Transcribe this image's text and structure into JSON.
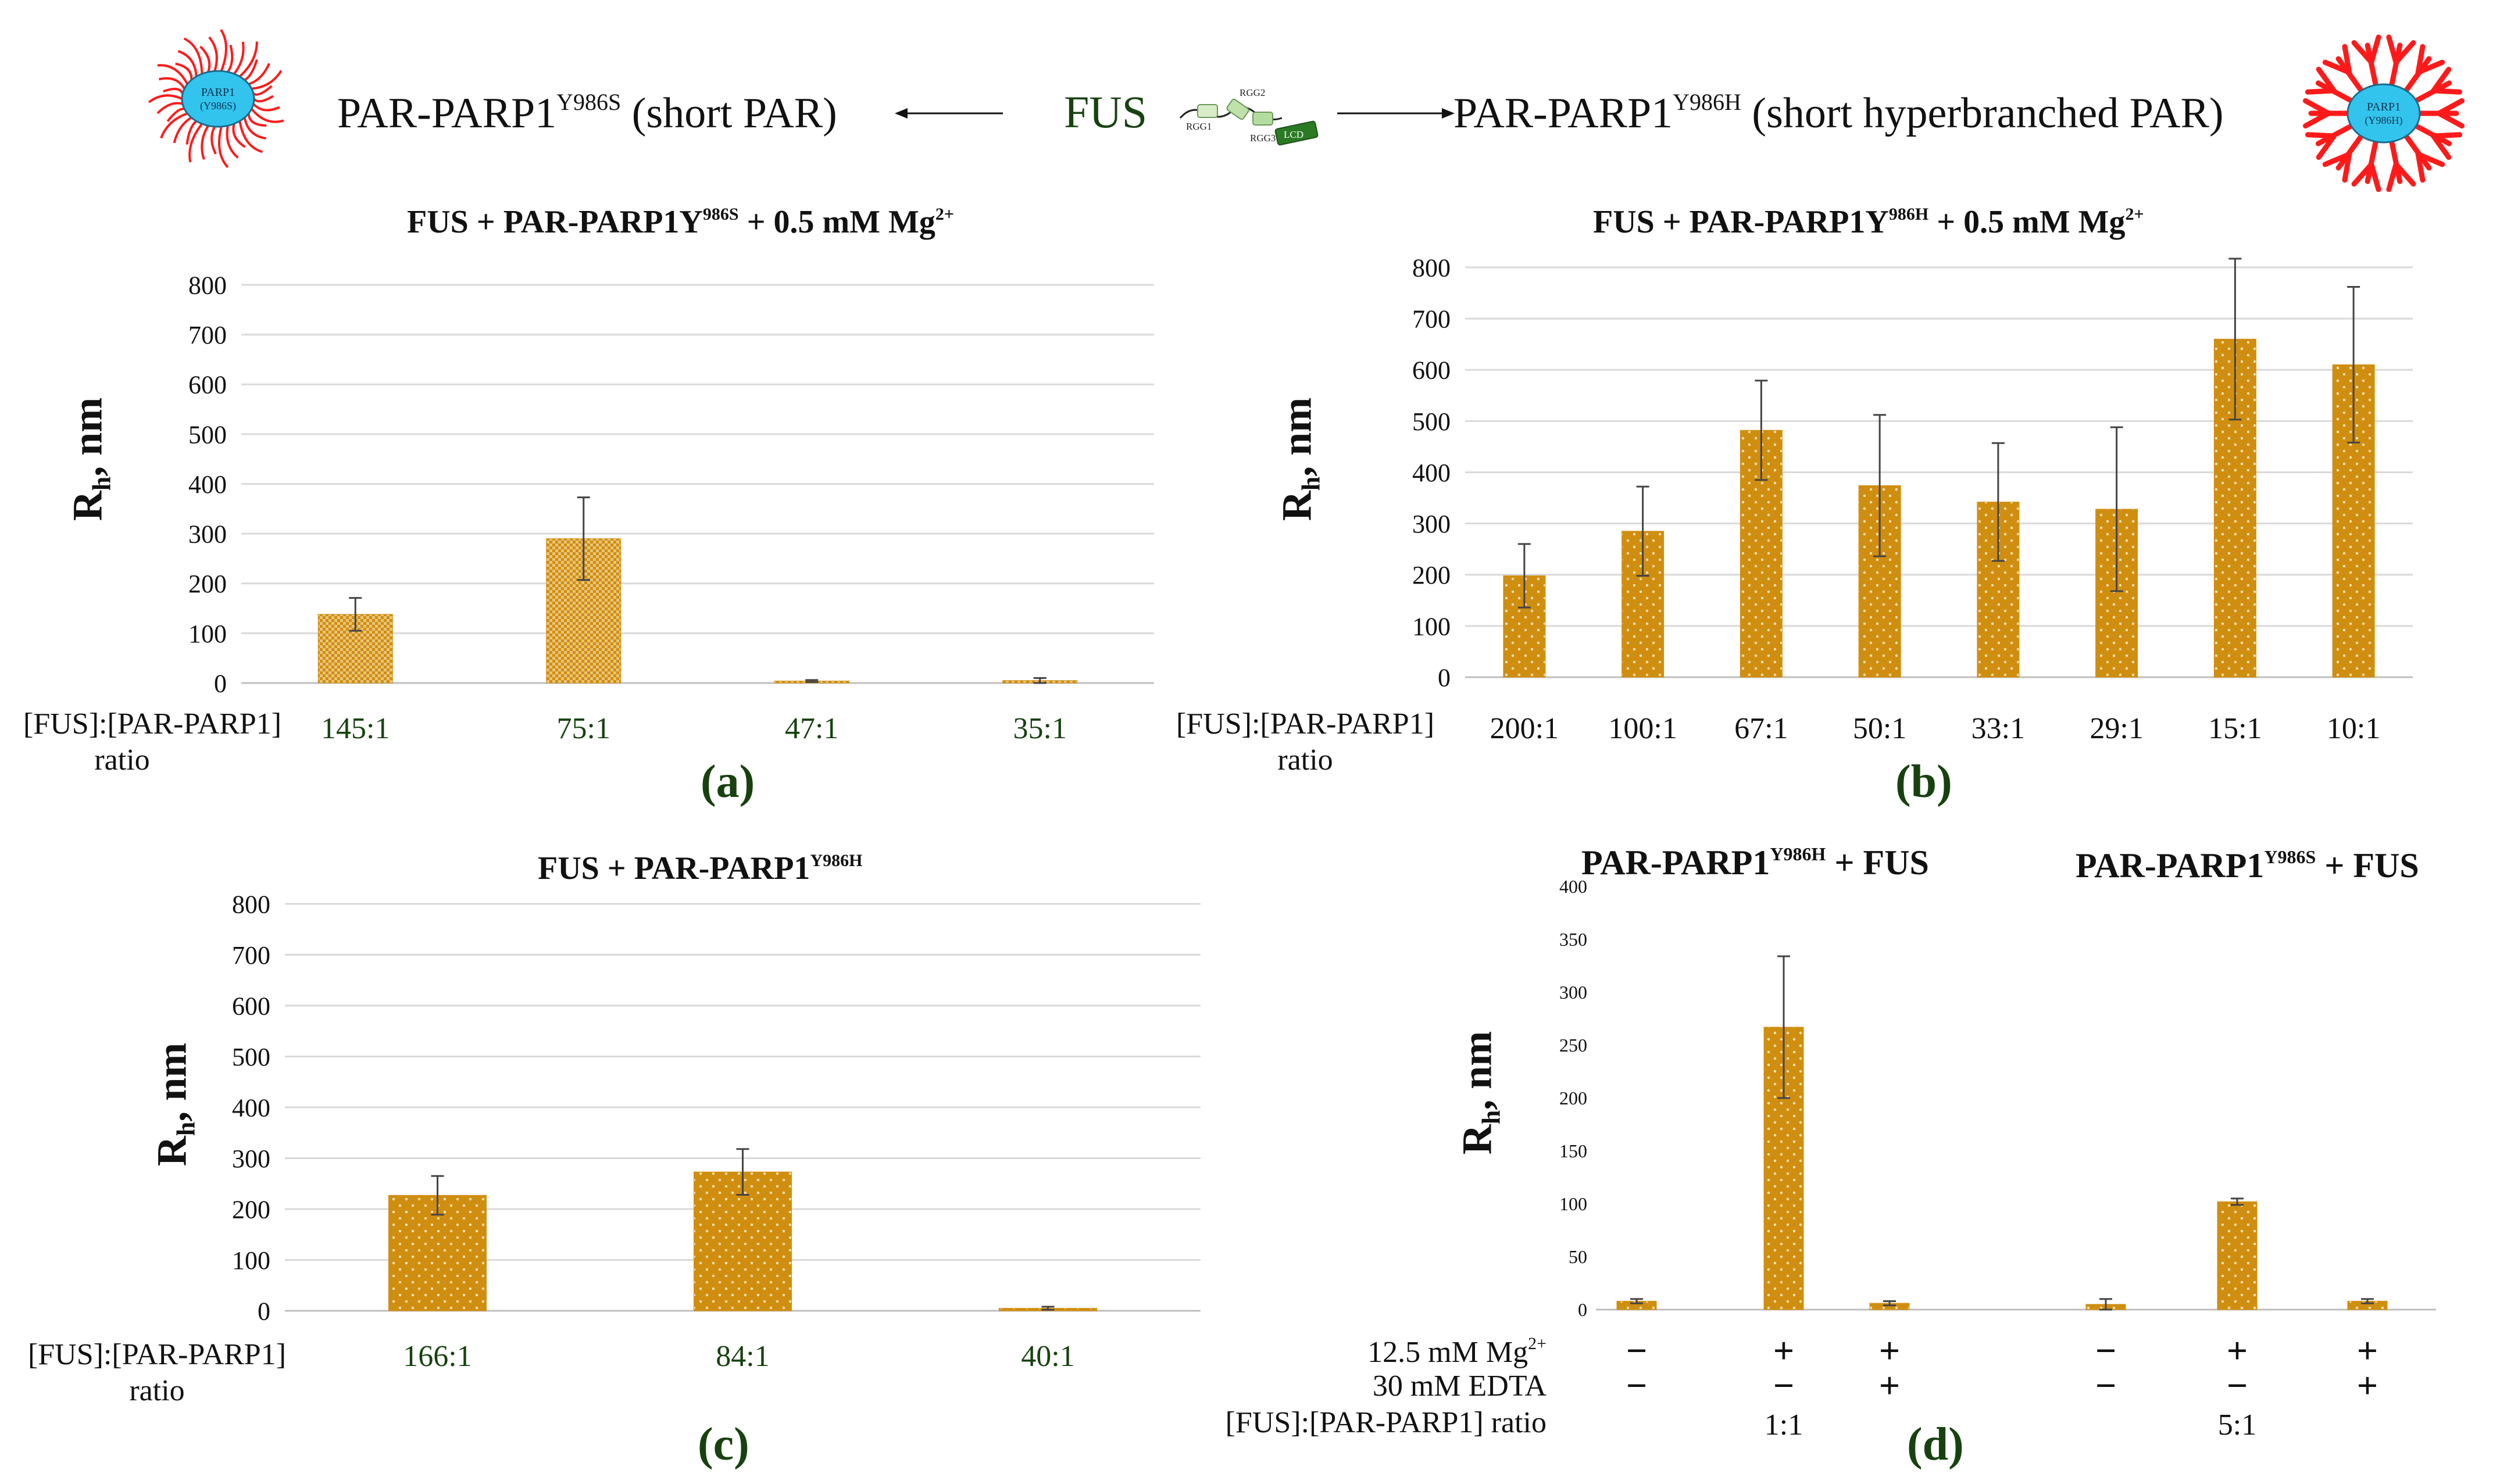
{
  "header": {
    "left_label": "PAR-PARP1",
    "left_sup": "Y986S",
    "left_desc": "(short PAR)",
    "center_label": "FUS",
    "right_label": "PAR-PARP1",
    "right_sup": "Y986H",
    "right_desc": "(short hyperbranched PAR)",
    "left_bubble_line1": "PARP1",
    "left_bubble_line2": "(Y986S)",
    "right_bubble_line1": "PARP1",
    "right_bubble_line2": "(Y986H)",
    "domain_rgg1": "RGG1",
    "domain_rgg2": "RGG2",
    "domain_rgg3": "RGG3",
    "domain_lcd": "LCD"
  },
  "colors": {
    "bar": "#d08e10",
    "grid": "#d9d9d9",
    "error": "#444444",
    "label_green": "#17420f",
    "par_red": "#ff1a1a",
    "bubble_blue": "#33c4ee"
  },
  "x_row_label_line1": "[FUS]:[PAR-PARP1]",
  "x_row_label_line2": "ratio",
  "chart_data": [
    {
      "type": "bar",
      "panel": "(a)",
      "title": "FUS  + PAR-PARP1Y",
      "title_sup": "986S",
      "title_suffix": " + 0.5 mM Mg",
      "title_ion": "2+",
      "ylabel": "R",
      "ylabel_sub": "h",
      "ylabel_unit": ", nm",
      "ylim": [
        0,
        800
      ],
      "yticks": [
        "0",
        "100",
        "200",
        "300",
        "400",
        "500",
        "600",
        "700",
        "800"
      ],
      "categories": [
        "145:1",
        "75:1",
        "47:1",
        "35:1"
      ],
      "values": [
        138,
        290,
        4,
        5
      ],
      "errors": [
        33,
        83,
        2,
        5
      ],
      "grid": true
    },
    {
      "type": "bar",
      "panel": "(b)",
      "title": "FUS + PAR-PARP1Y",
      "title_sup": "986H",
      "title_suffix": " + 0.5 mM Mg",
      "title_ion": "2+",
      "ylabel": "R",
      "ylabel_sub": "h",
      "ylabel_unit": ", nm",
      "ylim": [
        0,
        800
      ],
      "yticks": [
        "0",
        "100",
        "200",
        "300",
        "400",
        "500",
        "600",
        "700",
        "800"
      ],
      "categories": [
        "200:1",
        "100:1",
        "67:1",
        "50:1",
        "33:1",
        "29:1",
        "15:1",
        "10:1"
      ],
      "values": [
        198,
        285,
        482,
        374,
        342,
        328,
        660,
        610
      ],
      "errors": [
        62,
        87,
        97,
        138,
        115,
        160,
        157,
        152
      ],
      "grid": true
    },
    {
      "type": "bar",
      "panel": "(c)",
      "title": "FUS  + PAR-PARP1",
      "title_sup": "Y986H",
      "title_suffix": "",
      "title_ion": "",
      "ylabel": "R",
      "ylabel_sub": "h",
      "ylabel_unit": ", nm",
      "ylim": [
        0,
        800
      ],
      "yticks": [
        "0",
        "100",
        "200",
        "300",
        "400",
        "500",
        "600",
        "700",
        "800"
      ],
      "categories": [
        "166:1",
        "84:1",
        "40:1"
      ],
      "values": [
        227,
        273,
        5
      ],
      "errors": [
        38,
        45,
        3
      ],
      "grid": true
    },
    {
      "type": "bar",
      "panel": "(d)",
      "group_titles": [
        {
          "text": "PAR-PARP1",
          "sup": "Y986H",
          "suffix": " + FUS"
        },
        {
          "text": "PAR-PARP1",
          "sup": "Y986S",
          "suffix": " + FUS"
        }
      ],
      "ylabel": "R",
      "ylabel_sub": "h",
      "ylabel_unit": ", nm",
      "ylim": [
        0,
        400
      ],
      "yticks": [
        "0",
        "50",
        "100",
        "150",
        "200",
        "250",
        "300",
        "350",
        "400"
      ],
      "values": [
        8,
        267,
        6,
        5,
        102,
        8
      ],
      "errors": [
        2,
        67,
        2,
        5,
        3,
        2
      ],
      "row_labels": {
        "mg": "12.5 mM Mg",
        "mg_sup": "2+",
        "edta": "30 mM EDTA",
        "ratio": "[FUS]:[PAR-PARP1] ratio"
      },
      "mg_signs": [
        "−",
        "+",
        "+",
        "−",
        "+",
        "+"
      ],
      "edta_signs": [
        "−",
        "−",
        "+",
        "−",
        "−",
        "+"
      ],
      "ratios": [
        "1:1",
        "5:1"
      ],
      "grid": false
    }
  ]
}
